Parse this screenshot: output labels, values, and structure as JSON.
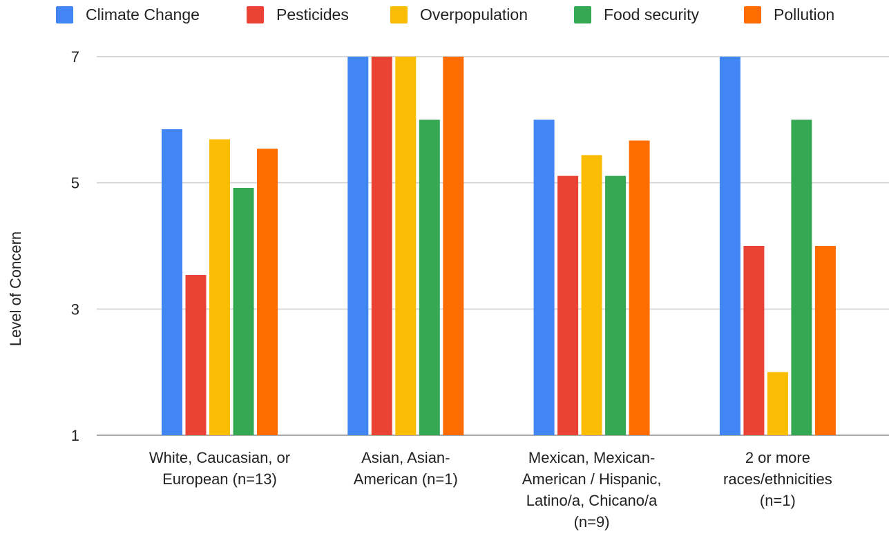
{
  "chart_data": {
    "type": "bar",
    "title": "",
    "xlabel": "",
    "ylabel": "Level of Concern",
    "ylim": [
      1,
      7
    ],
    "yticks": [
      1,
      3,
      5,
      7
    ],
    "grid": true,
    "legend_position": "top",
    "categories": [
      [
        "White, Caucasian, or",
        "European (n=13)"
      ],
      [
        "Asian, Asian-",
        "American (n=1)"
      ],
      [
        "Mexican, Mexican-",
        "American / Hispanic,",
        "Latino/a, Chicano/a",
        "(n=9)"
      ],
      [
        "2 or more",
        "races/ethnicities",
        "(n=1)"
      ]
    ],
    "series": [
      {
        "name": "Climate Change",
        "color": "#4285f4",
        "values": [
          5.85,
          7,
          6,
          7
        ]
      },
      {
        "name": "Pesticides",
        "color": "#ea4335",
        "values": [
          3.54,
          7,
          5.11,
          4
        ]
      },
      {
        "name": "Overpopulation",
        "color": "#fbbc04",
        "values": [
          5.69,
          7,
          5.44,
          2
        ]
      },
      {
        "name": "Food security",
        "color": "#34a853",
        "values": [
          4.92,
          6,
          5.11,
          6
        ]
      },
      {
        "name": "Pollution",
        "color": "#ff6d01",
        "values": [
          5.54,
          7,
          5.67,
          4
        ]
      }
    ]
  }
}
